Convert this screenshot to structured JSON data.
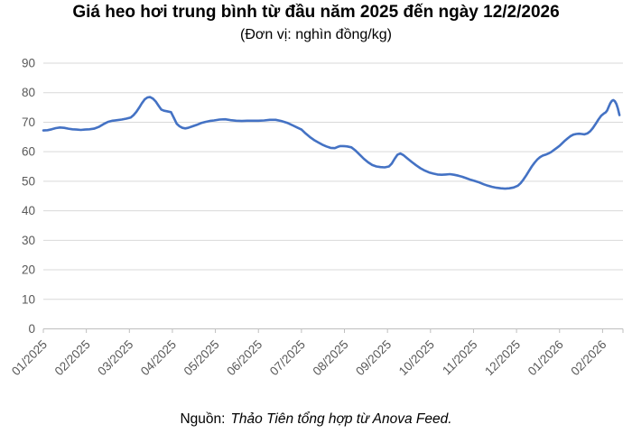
{
  "title": "Giá heo hơi trung bình từ đầu năm 2025 đến ngày 12/2/2026",
  "subtitle": "(Đơn vị: nghìn đồng/kg)",
  "source": {
    "prefix": "Nguồn:",
    "text": "Thảo Tiên tổng hợp từ Anova Feed."
  },
  "colors": {
    "line": "#4472C4",
    "grid": "#D9D9D9",
    "axis": "#BFBFBF",
    "tick_text": "#595959"
  },
  "chart_data": {
    "type": "line",
    "title": "Giá heo hơi trung bình từ đầu năm 2025 đến ngày 12/2/2026",
    "unit": "nghìn đồng/kg",
    "series_name": "Giá heo hơi trung bình",
    "grid": true,
    "legend": "none",
    "ylim": [
      0,
      90
    ],
    "y_ticks": [
      0,
      10,
      20,
      30,
      40,
      50,
      60,
      70,
      80,
      90
    ],
    "x_tick_labels": [
      "01/2025",
      "02/2025",
      "03/2025",
      "04/2025",
      "05/2025",
      "06/2025",
      "07/2025",
      "08/2025",
      "09/2025",
      "10/2025",
      "11/2025",
      "12/2025",
      "01/2026",
      "02/2026"
    ],
    "line_color": "#4472C4",
    "points": [
      [
        "2025-01-01",
        67.2
      ],
      [
        "2025-01-04",
        67.3
      ],
      [
        "2025-01-07",
        67.6
      ],
      [
        "2025-01-10",
        68.0
      ],
      [
        "2025-01-13",
        68.2
      ],
      [
        "2025-01-16",
        68.1
      ],
      [
        "2025-01-19",
        67.8
      ],
      [
        "2025-01-22",
        67.6
      ],
      [
        "2025-01-25",
        67.5
      ],
      [
        "2025-01-28",
        67.4
      ],
      [
        "2025-01-31",
        67.5
      ],
      [
        "2025-02-03",
        67.6
      ],
      [
        "2025-02-06",
        67.8
      ],
      [
        "2025-02-09",
        68.4
      ],
      [
        "2025-02-12",
        69.3
      ],
      [
        "2025-02-15",
        70.1
      ],
      [
        "2025-02-18",
        70.5
      ],
      [
        "2025-02-21",
        70.7
      ],
      [
        "2025-02-24",
        70.9
      ],
      [
        "2025-02-27",
        71.2
      ],
      [
        "2025-03-02",
        71.6
      ],
      [
        "2025-03-04",
        72.4
      ],
      [
        "2025-03-06",
        73.5
      ],
      [
        "2025-03-08",
        74.9
      ],
      [
        "2025-03-10",
        76.4
      ],
      [
        "2025-03-12",
        77.7
      ],
      [
        "2025-03-14",
        78.4
      ],
      [
        "2025-03-16",
        78.5
      ],
      [
        "2025-03-18",
        78.0
      ],
      [
        "2025-03-20",
        77.0
      ],
      [
        "2025-03-22",
        75.6
      ],
      [
        "2025-03-24",
        74.3
      ],
      [
        "2025-03-26",
        73.9
      ],
      [
        "2025-03-28",
        73.7
      ],
      [
        "2025-03-31",
        73.4
      ],
      [
        "2025-04-02",
        71.5
      ],
      [
        "2025-04-04",
        69.5
      ],
      [
        "2025-04-06",
        68.6
      ],
      [
        "2025-04-08",
        68.1
      ],
      [
        "2025-04-10",
        67.9
      ],
      [
        "2025-04-12",
        68.1
      ],
      [
        "2025-04-15",
        68.6
      ],
      [
        "2025-04-18",
        69.1
      ],
      [
        "2025-04-21",
        69.7
      ],
      [
        "2025-04-24",
        70.1
      ],
      [
        "2025-04-27",
        70.4
      ],
      [
        "2025-04-30",
        70.6
      ],
      [
        "2025-05-04",
        70.9
      ],
      [
        "2025-05-08",
        71.0
      ],
      [
        "2025-05-12",
        70.7
      ],
      [
        "2025-05-16",
        70.5
      ],
      [
        "2025-05-20",
        70.4
      ],
      [
        "2025-05-24",
        70.5
      ],
      [
        "2025-05-28",
        70.5
      ],
      [
        "2025-06-01",
        70.5
      ],
      [
        "2025-06-05",
        70.6
      ],
      [
        "2025-06-09",
        70.8
      ],
      [
        "2025-06-13",
        70.8
      ],
      [
        "2025-06-17",
        70.4
      ],
      [
        "2025-06-21",
        69.8
      ],
      [
        "2025-06-25",
        68.9
      ],
      [
        "2025-06-28",
        68.2
      ],
      [
        "2025-07-01",
        67.5
      ],
      [
        "2025-07-04",
        66.2
      ],
      [
        "2025-07-07",
        65.0
      ],
      [
        "2025-07-10",
        64.0
      ],
      [
        "2025-07-13",
        63.2
      ],
      [
        "2025-07-16",
        62.4
      ],
      [
        "2025-07-19",
        61.8
      ],
      [
        "2025-07-22",
        61.3
      ],
      [
        "2025-07-25",
        61.2
      ],
      [
        "2025-07-27",
        61.6
      ],
      [
        "2025-07-29",
        61.9
      ],
      [
        "2025-07-31",
        61.9
      ],
      [
        "2025-08-03",
        61.8
      ],
      [
        "2025-08-06",
        61.5
      ],
      [
        "2025-08-09",
        60.4
      ],
      [
        "2025-08-12",
        59.0
      ],
      [
        "2025-08-15",
        57.6
      ],
      [
        "2025-08-18",
        56.4
      ],
      [
        "2025-08-21",
        55.5
      ],
      [
        "2025-08-24",
        55.0
      ],
      [
        "2025-08-27",
        54.8
      ],
      [
        "2025-08-30",
        54.7
      ],
      [
        "2025-09-02",
        55.0
      ],
      [
        "2025-09-04",
        56.0
      ],
      [
        "2025-09-06",
        57.6
      ],
      [
        "2025-09-08",
        59.0
      ],
      [
        "2025-09-10",
        59.4
      ],
      [
        "2025-09-12",
        58.9
      ],
      [
        "2025-09-15",
        57.7
      ],
      [
        "2025-09-18",
        56.5
      ],
      [
        "2025-09-21",
        55.4
      ],
      [
        "2025-09-24",
        54.4
      ],
      [
        "2025-09-27",
        53.6
      ],
      [
        "2025-09-30",
        53.0
      ],
      [
        "2025-10-03",
        52.6
      ],
      [
        "2025-10-06",
        52.3
      ],
      [
        "2025-10-09",
        52.2
      ],
      [
        "2025-10-12",
        52.3
      ],
      [
        "2025-10-15",
        52.4
      ],
      [
        "2025-10-18",
        52.2
      ],
      [
        "2025-10-21",
        51.9
      ],
      [
        "2025-10-24",
        51.5
      ],
      [
        "2025-10-27",
        51.0
      ],
      [
        "2025-10-30",
        50.5
      ],
      [
        "2025-11-02",
        50.1
      ],
      [
        "2025-11-05",
        49.6
      ],
      [
        "2025-11-08",
        49.0
      ],
      [
        "2025-11-11",
        48.5
      ],
      [
        "2025-11-14",
        48.1
      ],
      [
        "2025-11-17",
        47.8
      ],
      [
        "2025-11-20",
        47.6
      ],
      [
        "2025-11-23",
        47.5
      ],
      [
        "2025-11-26",
        47.6
      ],
      [
        "2025-11-29",
        47.9
      ],
      [
        "2025-12-02",
        48.5
      ],
      [
        "2025-12-04",
        49.4
      ],
      [
        "2025-12-06",
        50.6
      ],
      [
        "2025-12-08",
        52.0
      ],
      [
        "2025-12-10",
        53.5
      ],
      [
        "2025-12-12",
        55.0
      ],
      [
        "2025-12-14",
        56.3
      ],
      [
        "2025-12-16",
        57.4
      ],
      [
        "2025-12-18",
        58.2
      ],
      [
        "2025-12-20",
        58.7
      ],
      [
        "2025-12-22",
        59.0
      ],
      [
        "2025-12-24",
        59.4
      ],
      [
        "2025-12-26",
        59.9
      ],
      [
        "2025-12-28",
        60.6
      ],
      [
        "2025-12-30",
        61.3
      ],
      [
        "2026-01-01",
        62.0
      ],
      [
        "2026-01-03",
        62.9
      ],
      [
        "2026-01-05",
        63.8
      ],
      [
        "2026-01-07",
        64.6
      ],
      [
        "2026-01-09",
        65.3
      ],
      [
        "2026-01-11",
        65.8
      ],
      [
        "2026-01-13",
        66.0
      ],
      [
        "2026-01-15",
        66.1
      ],
      [
        "2026-01-17",
        66.0
      ],
      [
        "2026-01-19",
        65.9
      ],
      [
        "2026-01-21",
        66.2
      ],
      [
        "2026-01-23",
        66.9
      ],
      [
        "2026-01-25",
        68.0
      ],
      [
        "2026-01-27",
        69.4
      ],
      [
        "2026-01-29",
        70.9
      ],
      [
        "2026-01-31",
        72.2
      ],
      [
        "2026-02-02",
        73.0
      ],
      [
        "2026-02-03",
        73.3
      ],
      [
        "2026-02-04",
        74.0
      ],
      [
        "2026-02-05",
        75.2
      ],
      [
        "2026-02-06",
        76.4
      ],
      [
        "2026-02-07",
        77.2
      ],
      [
        "2026-02-08",
        77.5
      ],
      [
        "2026-02-09",
        77.1
      ],
      [
        "2026-02-10",
        76.2
      ],
      [
        "2026-02-11",
        74.6
      ],
      [
        "2026-02-12",
        72.4
      ]
    ]
  }
}
